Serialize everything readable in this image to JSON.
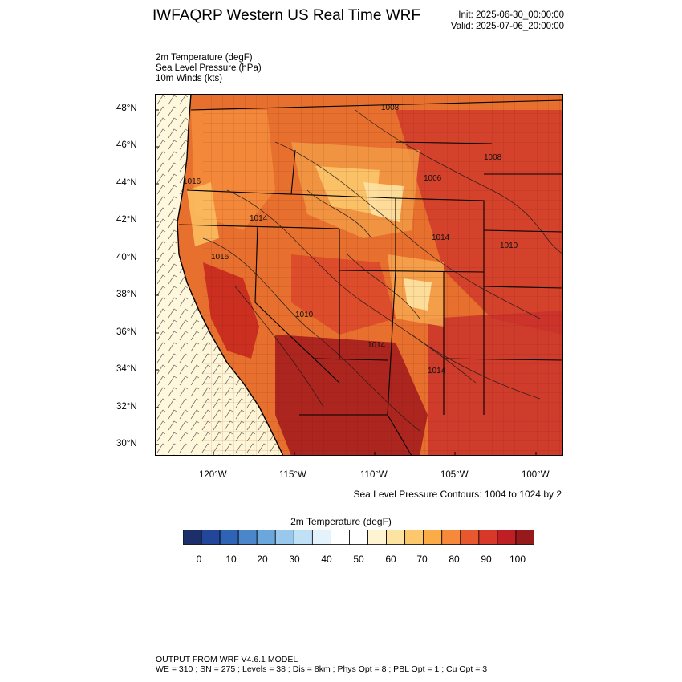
{
  "header": {
    "title": "IWFAQRP Western US Real Time WRF",
    "init": "Init: 2025-06-30_00:00:00",
    "valid": "Valid: 2025-07-06_20:00:00"
  },
  "fields": [
    "2m Temperature   (degF)",
    "Sea Level Pressure   (hPa)",
    "10m Winds   (kts)"
  ],
  "map": {
    "lat_labels": [
      "48°N",
      "46°N",
      "44°N",
      "42°N",
      "40°N",
      "38°N",
      "36°N",
      "34°N",
      "32°N",
      "30°N"
    ],
    "lon_labels": [
      "120°W",
      "115°W",
      "110°W",
      "105°W",
      "100°W"
    ],
    "pressure_labels": [
      "1008",
      "1008",
      "1016",
      "1014",
      "1016",
      "1014",
      "1010",
      "1006",
      "1014",
      "1014",
      "1010"
    ],
    "slp_note": "Sea Level Pressure Contours: 1004 to 1024 by 2"
  },
  "colorbar": {
    "title": "2m Temperature  (degF)",
    "colors": [
      "#1c2f6b",
      "#22479a",
      "#2f63b5",
      "#4a86c9",
      "#6aa7dc",
      "#98c9ec",
      "#bfe0f5",
      "#e4f2fb",
      "#ffffff",
      "#ffffff",
      "#fff4d2",
      "#fde3a2",
      "#fdc86c",
      "#fbac46",
      "#f7893a",
      "#e8582f",
      "#d8382a",
      "#bd1f24",
      "#961a1b"
    ],
    "labels": [
      "0",
      "10",
      "20",
      "30",
      "40",
      "50",
      "60",
      "70",
      "80",
      "90",
      "100"
    ]
  },
  "footer": {
    "line1": "OUTPUT FROM WRF V4.6.1 MODEL",
    "line2": "WE = 310 ; SN = 275 ; Levels = 38 ; Dis = 8km ; Phys Opt = 8 ; PBL Opt = 1 ; Cu Opt = 3"
  }
}
